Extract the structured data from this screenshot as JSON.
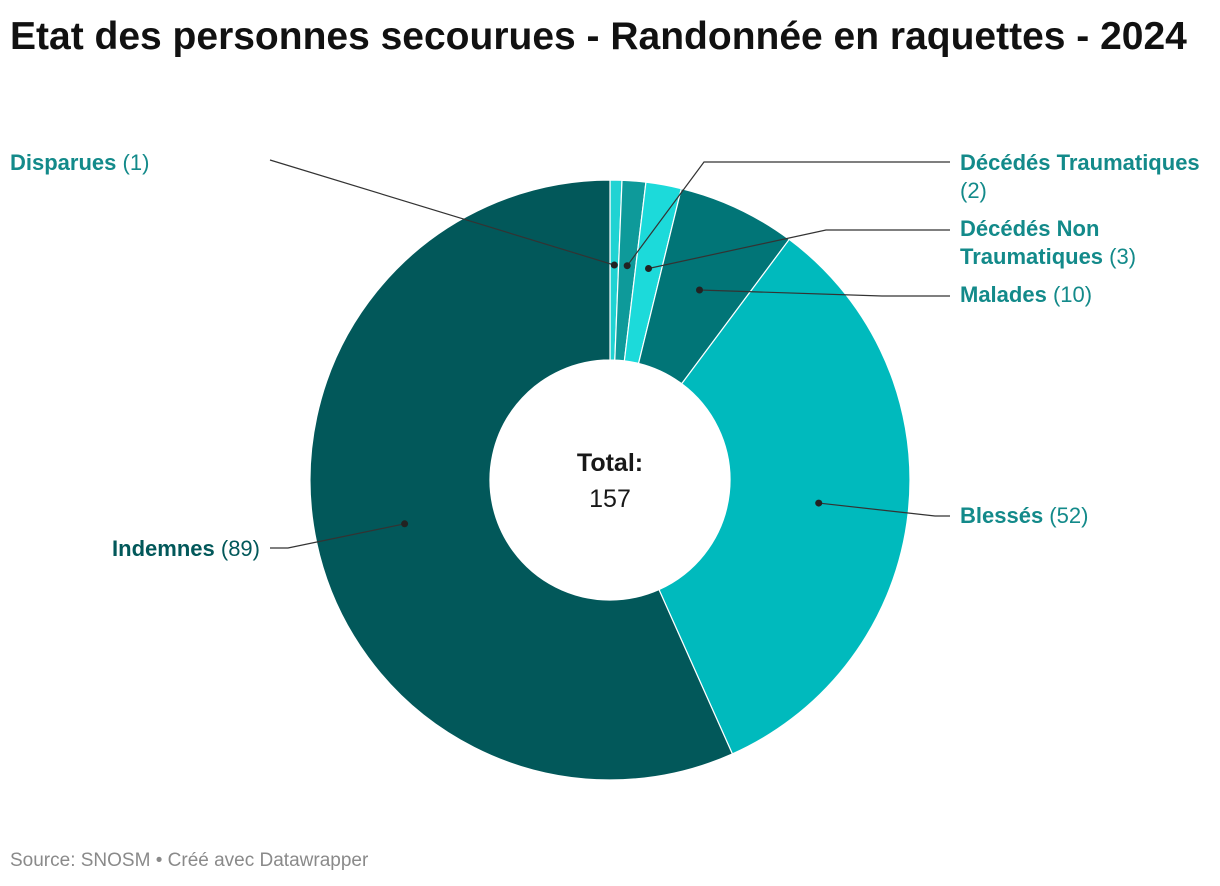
{
  "chart_data": {
    "type": "pie",
    "title": "Etat des personnes secourues - Randonnée en raquettes - 2024",
    "center_label": "Total:",
    "total": 157,
    "slices": [
      {
        "name": "Disparues",
        "value": 1,
        "color": "#20d3d3",
        "label_color": "#138a8a"
      },
      {
        "name": "Décédés Traumatiques",
        "value": 2,
        "color": "#0e9a9a",
        "label_color": "#138a8a"
      },
      {
        "name": "Décédés Non Traumatiques",
        "value": 3,
        "color": "#1cdada",
        "label_color": "#138a8a"
      },
      {
        "name": "Malades",
        "value": 10,
        "color": "#017577",
        "label_color": "#138a8a"
      },
      {
        "name": "Blessés",
        "value": 52,
        "color": "#00babd",
        "label_color": "#138a8a"
      },
      {
        "name": "Indemnes",
        "value": 89,
        "color": "#02585a",
        "label_color": "#02585a"
      }
    ]
  },
  "footer": {
    "source": "Source: SNOSM • Créé avec Datawrapper"
  }
}
